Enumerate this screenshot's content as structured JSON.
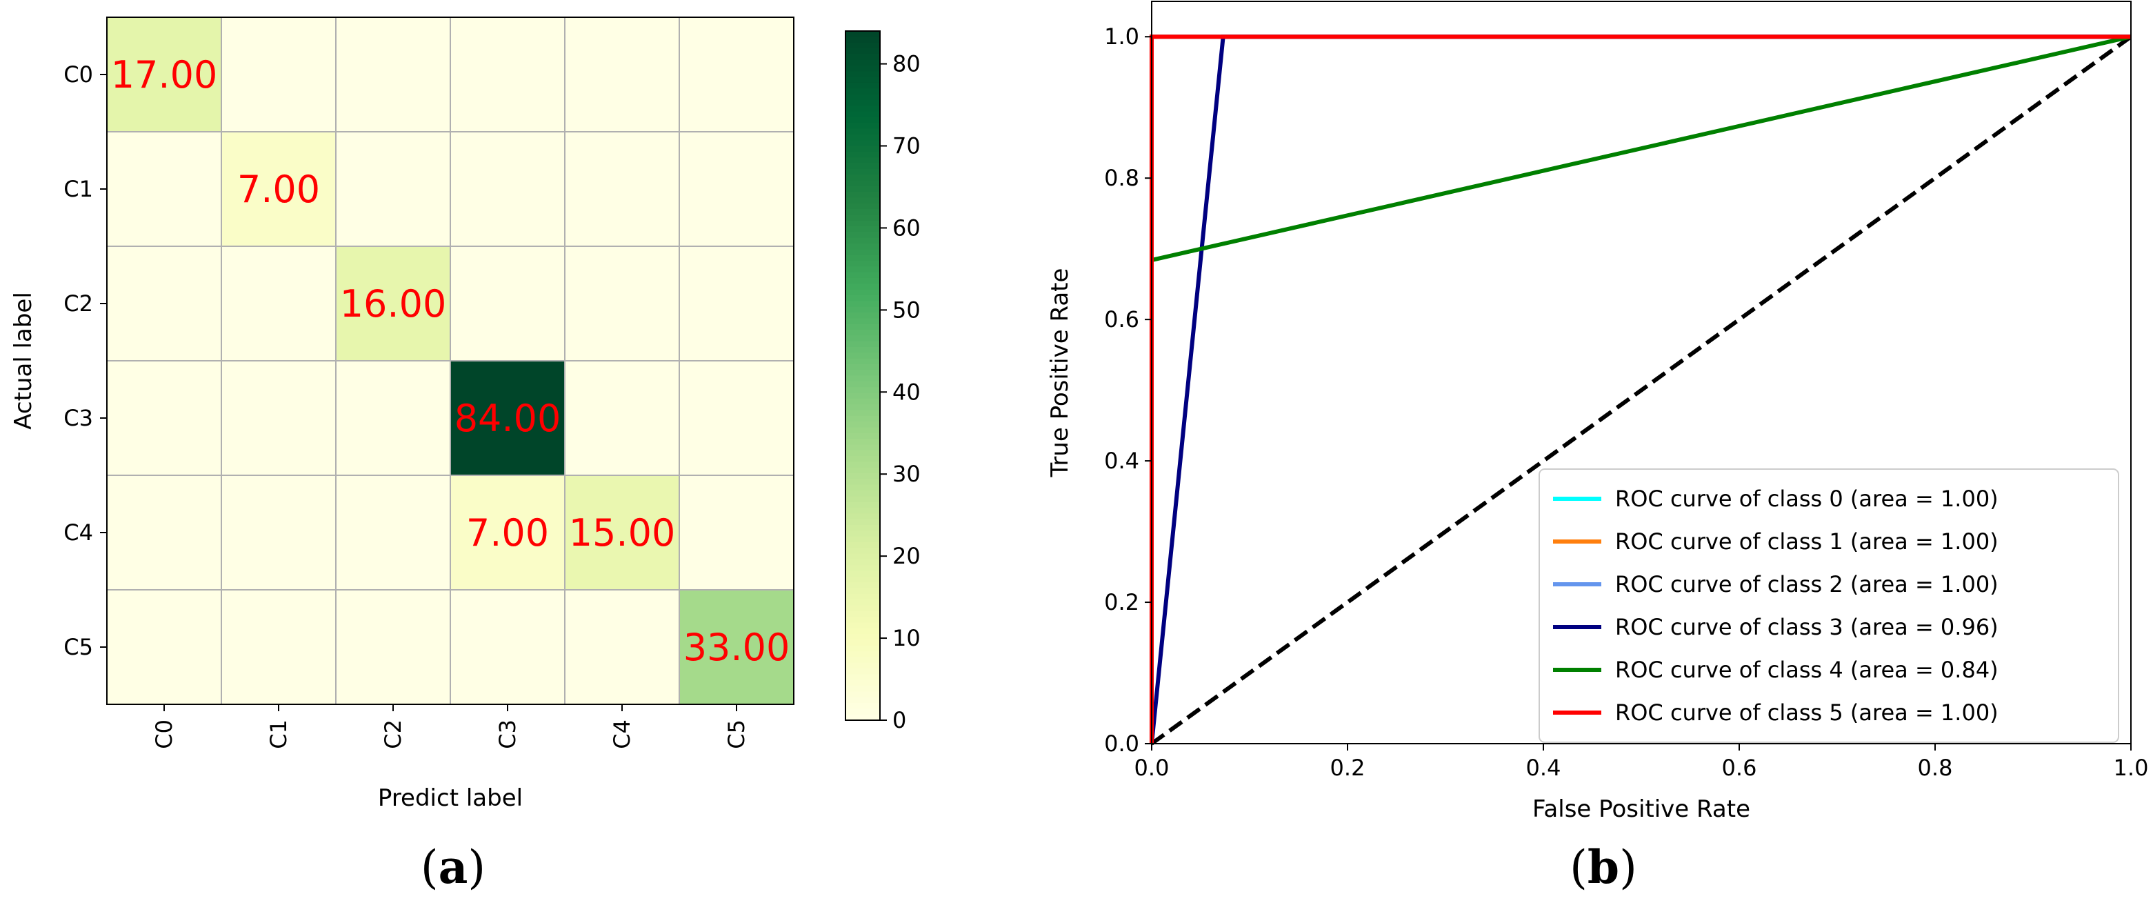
{
  "panels": {
    "a": {
      "open": "(",
      "letter": "a",
      "close": ")"
    },
    "b": {
      "open": "(",
      "letter": "b",
      "close": ")"
    }
  },
  "chart_data": [
    {
      "type": "heatmap",
      "title": "",
      "xlabel": "Predict label",
      "ylabel": "Actual label",
      "x_categories": [
        "C0",
        "C1",
        "C2",
        "C3",
        "C4",
        "C5"
      ],
      "y_categories": [
        "C0",
        "C1",
        "C2",
        "C3",
        "C4",
        "C5"
      ],
      "matrix": [
        [
          17,
          0,
          0,
          0,
          0,
          0
        ],
        [
          0,
          7,
          0,
          0,
          0,
          0
        ],
        [
          0,
          0,
          16,
          0,
          0,
          0
        ],
        [
          0,
          0,
          0,
          84,
          0,
          0
        ],
        [
          0,
          0,
          0,
          7,
          15,
          0
        ],
        [
          0,
          0,
          0,
          0,
          0,
          33
        ]
      ],
      "annotations": [
        {
          "row": 0,
          "col": 0,
          "text": "17.00"
        },
        {
          "row": 1,
          "col": 1,
          "text": "7.00"
        },
        {
          "row": 2,
          "col": 2,
          "text": "16.00"
        },
        {
          "row": 3,
          "col": 3,
          "text": "84.00"
        },
        {
          "row": 4,
          "col": 3,
          "text": "7.00"
        },
        {
          "row": 4,
          "col": 4,
          "text": "15.00"
        },
        {
          "row": 5,
          "col": 5,
          "text": "33.00"
        }
      ],
      "annotation_color": "#ff0000",
      "colormap": "YlGn",
      "colorbar": {
        "min": 0,
        "max": 84,
        "ticks": [
          0,
          10,
          20,
          30,
          40,
          50,
          60,
          70,
          80
        ]
      },
      "grid": true
    },
    {
      "type": "line",
      "title": "",
      "xlabel": "False Positive Rate",
      "ylabel": "True Positive Rate",
      "xlim": [
        0.0,
        1.0
      ],
      "ylim": [
        0.0,
        1.05
      ],
      "x_ticks": [
        "0.0",
        "0.2",
        "0.4",
        "0.6",
        "0.8",
        "1.0"
      ],
      "y_ticks": [
        "0.0",
        "0.2",
        "0.4",
        "0.6",
        "0.8",
        "1.0"
      ],
      "legend_position": "lower-right",
      "grid": false,
      "series": [
        {
          "name": "ROC curve of class 0 (area = 1.00)",
          "color": "#00ffff",
          "x": [
            0,
            0,
            1
          ],
          "y": [
            0,
            1,
            1
          ]
        },
        {
          "name": "ROC curve of class 1 (area = 1.00)",
          "color": "#ff7f0e",
          "x": [
            0,
            0,
            1
          ],
          "y": [
            0,
            1,
            1
          ]
        },
        {
          "name": "ROC curve of class 2 (area = 1.00)",
          "color": "#6495ed",
          "x": [
            0,
            0,
            1
          ],
          "y": [
            0,
            1,
            1
          ]
        },
        {
          "name": "ROC curve of class 3 (area = 0.96)",
          "color": "#000080",
          "x": [
            0,
            0.073,
            1
          ],
          "y": [
            0,
            1,
            1
          ]
        },
        {
          "name": "ROC curve of class 4 (area = 0.84)",
          "color": "#008000",
          "x": [
            0,
            0,
            1
          ],
          "y": [
            0,
            0.684,
            1
          ]
        },
        {
          "name": "ROC curve of class 5 (area = 1.00)",
          "color": "#ff0000",
          "x": [
            0,
            0,
            1
          ],
          "y": [
            0,
            1,
            1
          ]
        }
      ],
      "reference_line": {
        "x": [
          0,
          1
        ],
        "y": [
          0,
          1
        ],
        "color": "#000000",
        "style": "dashed"
      }
    }
  ]
}
